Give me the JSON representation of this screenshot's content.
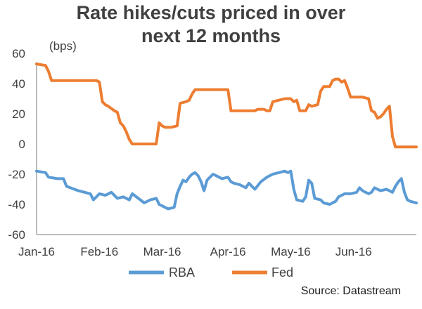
{
  "chart_data": {
    "type": "line",
    "title_line1": "Rate hikes/cuts priced in over",
    "title_line2": "next 12 months",
    "ylabel": "(bps)",
    "source": "Source: Datastream",
    "ylim": [
      -60,
      60
    ],
    "yticks": [
      60,
      40,
      20,
      0,
      -20,
      -40,
      -60
    ],
    "xlim": [
      0,
      127
    ],
    "xticks": [
      {
        "x": 0,
        "label": "Jan-16"
      },
      {
        "x": 21,
        "label": "Feb-16"
      },
      {
        "x": 42,
        "label": "Mar-16"
      },
      {
        "x": 64,
        "label": "Apr-16"
      },
      {
        "x": 85,
        "label": "May-16"
      },
      {
        "x": 106,
        "label": "Jun-16"
      }
    ],
    "legend_placement": "bottom",
    "grid": false,
    "series": [
      {
        "name": "RBA",
        "color": "#5b9bd5",
        "points": [
          [
            0,
            -18
          ],
          [
            3,
            -19
          ],
          [
            4,
            -22
          ],
          [
            7,
            -23
          ],
          [
            9,
            -23
          ],
          [
            10,
            -28
          ],
          [
            14,
            -31
          ],
          [
            18,
            -33
          ],
          [
            19,
            -37
          ],
          [
            21,
            -33
          ],
          [
            23,
            -34
          ],
          [
            25,
            -32
          ],
          [
            27,
            -36
          ],
          [
            29,
            -35
          ],
          [
            31,
            -37
          ],
          [
            32,
            -33
          ],
          [
            34,
            -36
          ],
          [
            36,
            -39
          ],
          [
            38,
            -37
          ],
          [
            40,
            -36
          ],
          [
            41,
            -40
          ],
          [
            43,
            -42
          ],
          [
            44,
            -43
          ],
          [
            46,
            -42
          ],
          [
            47,
            -33
          ],
          [
            48,
            -28
          ],
          [
            49,
            -24
          ],
          [
            50,
            -25
          ],
          [
            51,
            -22
          ],
          [
            52,
            -20
          ],
          [
            53,
            -19
          ],
          [
            54,
            -21
          ],
          [
            55,
            -25
          ],
          [
            56,
            -31
          ],
          [
            57,
            -24
          ],
          [
            58,
            -22
          ],
          [
            59,
            -20
          ],
          [
            60,
            -21
          ],
          [
            62,
            -23
          ],
          [
            64,
            -22
          ],
          [
            65,
            -25
          ],
          [
            66,
            -26
          ],
          [
            68,
            -27
          ],
          [
            70,
            -29
          ],
          [
            71,
            -26
          ],
          [
            73,
            -30
          ],
          [
            75,
            -25
          ],
          [
            77,
            -22
          ],
          [
            79,
            -20
          ],
          [
            81,
            -19
          ],
          [
            83,
            -18
          ],
          [
            84,
            -19
          ],
          [
            85,
            -18
          ],
          [
            86,
            -30
          ],
          [
            87,
            -37
          ],
          [
            89,
            -38
          ],
          [
            90,
            -35
          ],
          [
            91,
            -24
          ],
          [
            92,
            -26
          ],
          [
            93,
            -36
          ],
          [
            95,
            -37
          ],
          [
            96,
            -39
          ],
          [
            98,
            -40
          ],
          [
            100,
            -38
          ],
          [
            101,
            -35
          ],
          [
            103,
            -33
          ],
          [
            105,
            -33
          ],
          [
            107,
            -32
          ],
          [
            108,
            -29
          ],
          [
            109,
            -31
          ],
          [
            111,
            -33
          ],
          [
            112,
            -32
          ],
          [
            113,
            -29
          ],
          [
            115,
            -31
          ],
          [
            117,
            -30
          ],
          [
            119,
            -32
          ],
          [
            120,
            -28
          ],
          [
            121,
            -25
          ],
          [
            122,
            -23
          ],
          [
            123,
            -32
          ],
          [
            124,
            -37
          ],
          [
            125,
            -38
          ],
          [
            127,
            -39
          ]
        ]
      },
      {
        "name": "Fed",
        "color": "#ed7d31",
        "points": [
          [
            0,
            53
          ],
          [
            3,
            52
          ],
          [
            4,
            48
          ],
          [
            5,
            42
          ],
          [
            8,
            42
          ],
          [
            10,
            42
          ],
          [
            12,
            42
          ],
          [
            14,
            42
          ],
          [
            16,
            42
          ],
          [
            18,
            42
          ],
          [
            20,
            42
          ],
          [
            21,
            41
          ],
          [
            22,
            28
          ],
          [
            23,
            26
          ],
          [
            24,
            25
          ],
          [
            26,
            22
          ],
          [
            27,
            21
          ],
          [
            28,
            14
          ],
          [
            29,
            12
          ],
          [
            30,
            8
          ],
          [
            31,
            3
          ],
          [
            32,
            0
          ],
          [
            34,
            0
          ],
          [
            36,
            0
          ],
          [
            37,
            0
          ],
          [
            39,
            0
          ],
          [
            40,
            0
          ],
          [
            41,
            14
          ],
          [
            42,
            12
          ],
          [
            43,
            11
          ],
          [
            45,
            11
          ],
          [
            47,
            12
          ],
          [
            48,
            27
          ],
          [
            50,
            28
          ],
          [
            51,
            29
          ],
          [
            52,
            33
          ],
          [
            53,
            36
          ],
          [
            55,
            36
          ],
          [
            57,
            36
          ],
          [
            59,
            36
          ],
          [
            61,
            36
          ],
          [
            63,
            36
          ],
          [
            64,
            36
          ],
          [
            65,
            22
          ],
          [
            67,
            22
          ],
          [
            69,
            22
          ],
          [
            71,
            22
          ],
          [
            73,
            22
          ],
          [
            74,
            23
          ],
          [
            76,
            23
          ],
          [
            77,
            22
          ],
          [
            78,
            22
          ],
          [
            79,
            28
          ],
          [
            81,
            29
          ],
          [
            83,
            30
          ],
          [
            85,
            30
          ],
          [
            86,
            28
          ],
          [
            87,
            29
          ],
          [
            88,
            22
          ],
          [
            90,
            22
          ],
          [
            91,
            26
          ],
          [
            92,
            25
          ],
          [
            94,
            26
          ],
          [
            95,
            35
          ],
          [
            96,
            38
          ],
          [
            98,
            38
          ],
          [
            99,
            42
          ],
          [
            100,
            43
          ],
          [
            101,
            43
          ],
          [
            102,
            41
          ],
          [
            103,
            42
          ],
          [
            104,
            37
          ],
          [
            105,
            31
          ],
          [
            107,
            31
          ],
          [
            109,
            31
          ],
          [
            111,
            30
          ],
          [
            112,
            22
          ],
          [
            113,
            21
          ],
          [
            114,
            17
          ],
          [
            115,
            18
          ],
          [
            116,
            20
          ],
          [
            117,
            23
          ],
          [
            118,
            25
          ],
          [
            119,
            5
          ],
          [
            120,
            -2
          ],
          [
            122,
            -2
          ],
          [
            127,
            -2
          ]
        ]
      }
    ]
  }
}
